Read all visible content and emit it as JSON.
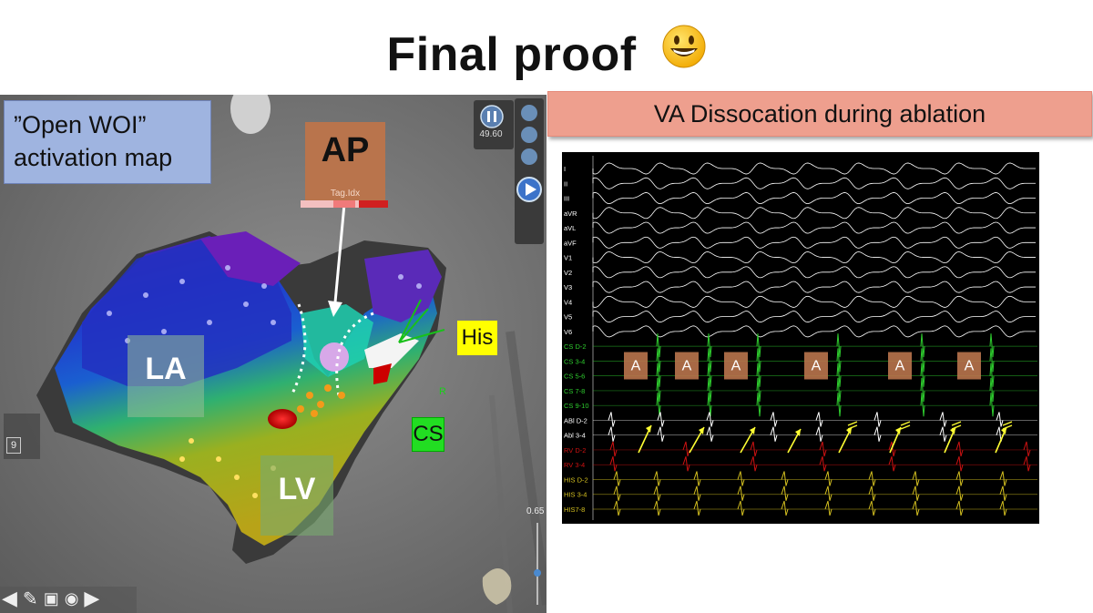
{
  "slide": {
    "title": "Final proof"
  },
  "map": {
    "woi_label_line1": "”Open WOI”",
    "woi_label_line2": "activation map",
    "ap_label": "AP",
    "ap_tag": "Tag.Idx",
    "la_label": "LA",
    "lv_label": "LV",
    "his_label": "His",
    "cs_label": "CS",
    "catheter_letter": "R",
    "time_value": "49.60",
    "scale_value": "0.65",
    "count_value": "9"
  },
  "egm": {
    "banner": "VA Dissocation during ablation",
    "leads": [
      "I",
      "II",
      "III",
      "aVR",
      "aVL",
      "aVF",
      "V1",
      "V2",
      "V3",
      "V4",
      "V5",
      "V6",
      "CS D-2",
      "CS 3-4",
      "CS 5-6",
      "CS 7-8",
      "CS 9-10",
      "ABl D-2",
      "Abl 3-4",
      "RV D-2",
      "RV 3-4",
      "HIS D-2",
      "HIS 3-4",
      "HIS7-8"
    ],
    "a_marker": "A",
    "colors": {
      "surface": "#ffffff",
      "cs": "#2ecc2e",
      "abl": "#ffffff",
      "rv": "#cc1111",
      "his": "#d4c020",
      "arrow": "#ffff33",
      "a_box": "#b9744c"
    }
  }
}
